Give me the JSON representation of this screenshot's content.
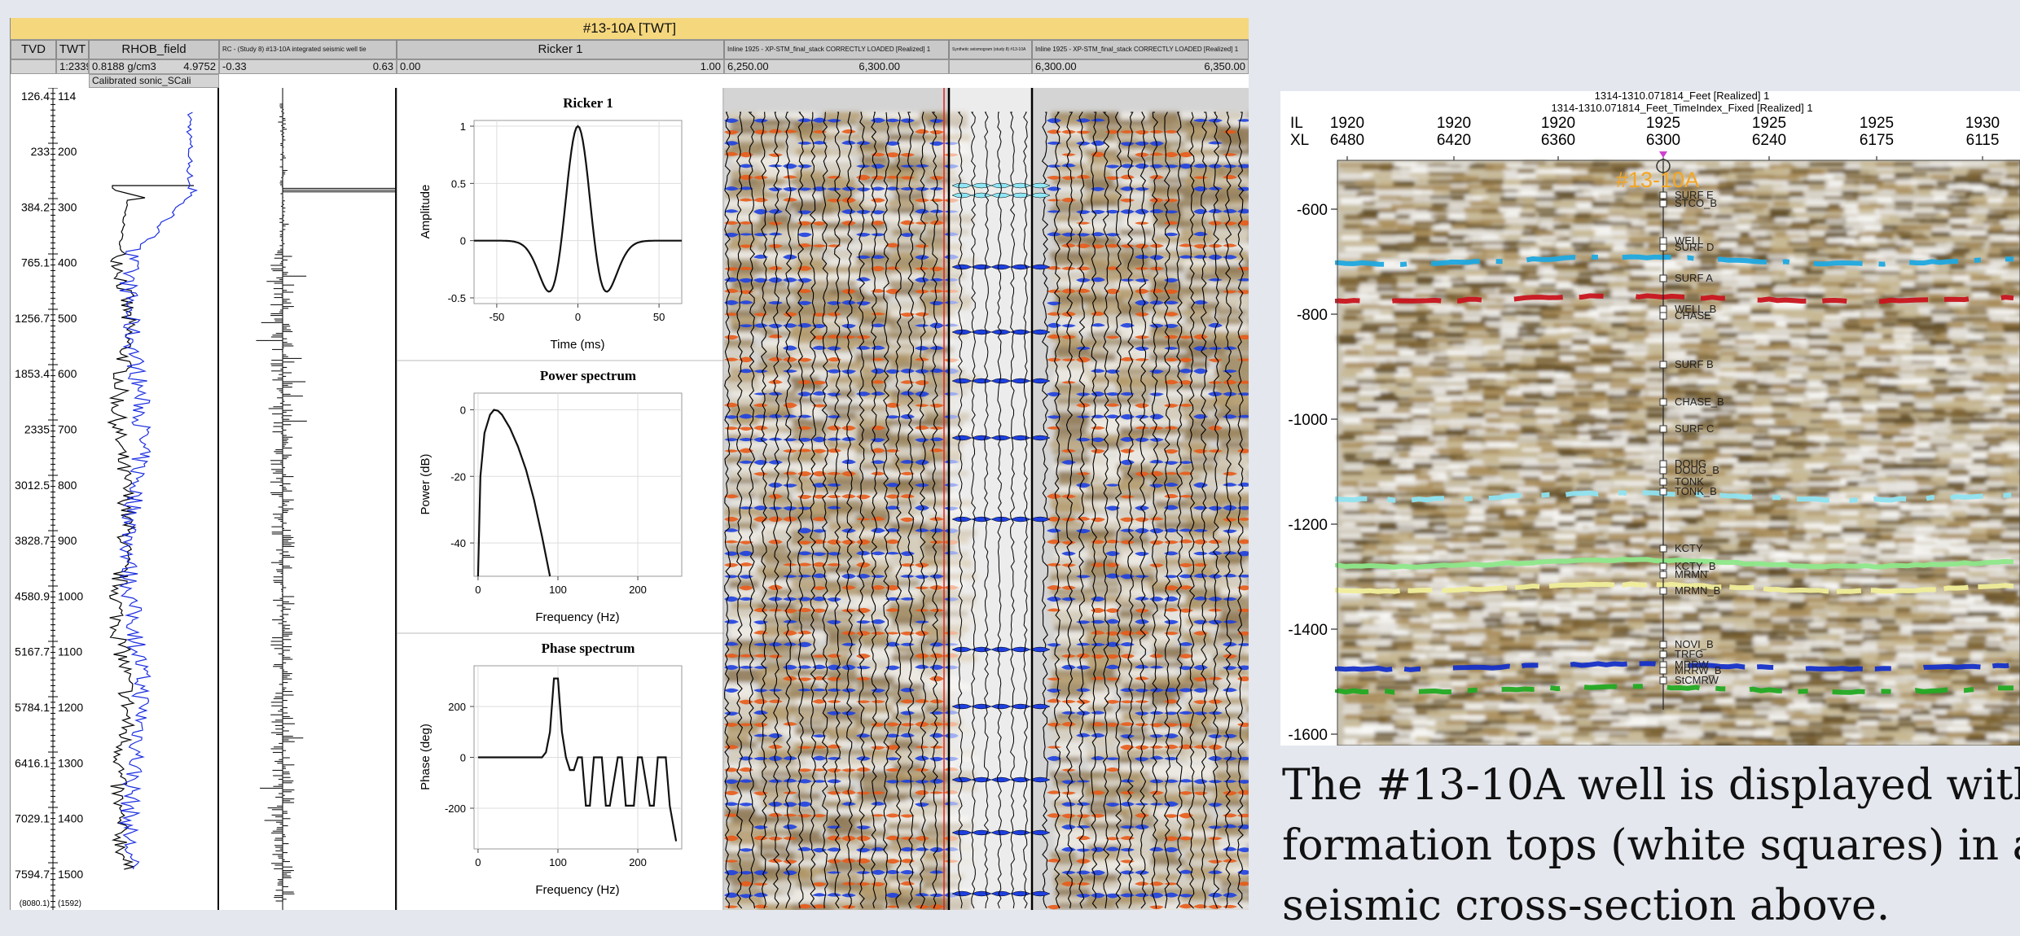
{
  "window_title": "#13-10A [TWT]",
  "tracks": {
    "tvd": "TVD",
    "twt": "TWT",
    "twt_scale": "1:2339",
    "rhob": "RHOB_field",
    "rhob_min": "0.8188 g/cm3",
    "rhob_max": "4.9752",
    "sonic": "Calibrated sonic_SCali",
    "rc": "RC - (Study 8) #13-10A integrated seismic well tie",
    "rc_min": "-0.33",
    "rc_max": "0.63",
    "ricker": "Ricker 1",
    "ricker_min": "0.00",
    "ricker_max": "1.00",
    "seis1": "Inline 1925 - XP-STM_final_stack CORRECTLY LOADED [Realized] 1",
    "seis1_min": "6,250.00",
    "seis1_max": "6,300.00",
    "synth": "Synthetic seismogram (study 8) #13-10A",
    "seis2": "Inline 1925 - XP-STM_final_stack CORRECTLY LOADED [Realized] 1",
    "seis2_min": "6,300.00",
    "seis2_max": "6,350.00"
  },
  "depth_rows": [
    {
      "tvd": "126.4",
      "twt": "114"
    },
    {
      "tvd": "233",
      "twt": "200"
    },
    {
      "tvd": "384.2",
      "twt": "300"
    },
    {
      "tvd": "765.1",
      "twt": "400"
    },
    {
      "tvd": "1256.7",
      "twt": "500"
    },
    {
      "tvd": "1853.4",
      "twt": "600"
    },
    {
      "tvd": "2335",
      "twt": "700"
    },
    {
      "tvd": "3012.5",
      "twt": "800"
    },
    {
      "tvd": "3828.7",
      "twt": "900"
    },
    {
      "tvd": "4580.9",
      "twt": "1000"
    },
    {
      "tvd": "5167.7",
      "twt": "1100"
    },
    {
      "tvd": "5784.1",
      "twt": "1200"
    },
    {
      "tvd": "6416.1",
      "twt": "1300"
    },
    {
      "tvd": "7029.1",
      "twt": "1400"
    },
    {
      "tvd": "7594.7",
      "twt": "1500"
    },
    {
      "tvd": "(8080.1)",
      "twt": "(1592)"
    }
  ],
  "wavelet_panel": {
    "plot1": {
      "title": "Ricker 1",
      "xlabel": "Time (ms)",
      "ylabel": "Amplitude",
      "xticks": [
        "-50",
        "0",
        "50"
      ],
      "yticks": [
        "1",
        "0.5",
        "0",
        "-0.5"
      ]
    },
    "plot2": {
      "title": "Power spectrum",
      "xlabel": "Frequency (Hz)",
      "ylabel": "Power (dB)",
      "xticks": [
        "0",
        "100",
        "200"
      ],
      "yticks": [
        "0",
        "-20",
        "-40"
      ]
    },
    "plot3": {
      "title": "Phase spectrum",
      "xlabel": "Frequency (Hz)",
      "ylabel": "Phase (deg)",
      "xticks": [
        "0",
        "100",
        "200"
      ],
      "yticks": [
        "200",
        "0",
        "-200"
      ]
    }
  },
  "chart_data": [
    {
      "type": "line",
      "title": "Ricker 1",
      "xlabel": "Time (ms)",
      "ylabel": "Amplitude",
      "xlim": [
        -64,
        64
      ],
      "ylim": [
        -0.55,
        1.05
      ],
      "x": [
        -64,
        -56,
        -48,
        -40,
        -32,
        -28,
        -24,
        -20,
        -16,
        -12,
        -8,
        -4,
        0,
        4,
        8,
        12,
        16,
        20,
        24,
        28,
        32,
        40,
        48,
        56,
        64
      ],
      "y": [
        0,
        0,
        0,
        -0.01,
        -0.1,
        -0.22,
        -0.38,
        -0.45,
        -0.36,
        -0.02,
        0.45,
        0.86,
        1.0,
        0.86,
        0.45,
        -0.02,
        -0.36,
        -0.45,
        -0.38,
        -0.22,
        -0.1,
        -0.01,
        0,
        0,
        0
      ]
    },
    {
      "type": "line",
      "title": "Power spectrum",
      "xlabel": "Frequency (Hz)",
      "ylabel": "Power (dB)",
      "xlim": [
        -5,
        255
      ],
      "ylim": [
        -50,
        5
      ],
      "x": [
        0,
        3,
        8,
        15,
        20,
        25,
        30,
        40,
        50,
        60,
        70,
        80,
        90
      ],
      "y": [
        -50,
        -20,
        -7,
        -1.5,
        0,
        -0.3,
        -1.5,
        -5.5,
        -11,
        -18,
        -27,
        -38,
        -50
      ]
    },
    {
      "type": "line",
      "title": "Phase spectrum",
      "xlabel": "Frequency (Hz)",
      "ylabel": "Phase (deg)",
      "xlim": [
        -5,
        255
      ],
      "ylim": [
        -360,
        360
      ],
      "x": [
        0,
        80,
        85,
        90,
        95,
        100,
        105,
        110,
        115,
        120,
        125,
        130,
        135,
        140,
        145,
        155,
        160,
        165,
        175,
        180,
        185,
        195,
        200,
        205,
        215,
        220,
        225,
        235,
        240,
        248
      ],
      "y": [
        0,
        0,
        20,
        100,
        310,
        310,
        100,
        0,
        -50,
        -50,
        0,
        0,
        -190,
        -190,
        0,
        0,
        -190,
        -190,
        0,
        0,
        -190,
        -190,
        0,
        0,
        -190,
        -190,
        0,
        0,
        -190,
        -330
      ]
    }
  ],
  "cross_section": {
    "title_line1": "1314-1310.071814_Feet [Realized] 1",
    "title_line2": "1314-1310.071814_Feet_TimeIndex_Fixed [Realized] 1",
    "il_label": "IL",
    "xl_label": "XL",
    "columns": [
      {
        "il": "1920",
        "xl": "6480"
      },
      {
        "il": "1920",
        "xl": "6420"
      },
      {
        "il": "1920",
        "xl": "6360"
      },
      {
        "il": "1925",
        "xl": "6300"
      },
      {
        "il": "1925",
        "xl": "6240"
      },
      {
        "il": "1925",
        "xl": "6175"
      },
      {
        "il": "1930",
        "xl": "6115"
      }
    ],
    "y_ticks": [
      "-600",
      "-800",
      "-1000",
      "-1200",
      "-1400",
      "-1600"
    ],
    "well_name": "#13-10A",
    "tops": [
      "SURF E",
      "STCO_B",
      "WELL",
      "SURF D",
      "SURF A",
      "WELL_B",
      "CHASE",
      "SURF B",
      "CHASE_B",
      "SURF C",
      "DOUG",
      "DOUG_B",
      "TONK",
      "TONK_B",
      "KCTY",
      "KCTY_B",
      "MRMN",
      "MRMN_B",
      "NOVI_B",
      "TRFG",
      "MRRW",
      "MRRW_B",
      "StCMRW"
    ],
    "colors": {
      "cyan": "#1fa9e0",
      "red": "#c8141e",
      "light_cyan": "#8fe3f0",
      "light_green": "#8ee88a",
      "yellow": "#f0ee9a",
      "blue": "#1530c8",
      "green": "#22aa22",
      "well_label": "#f5a623"
    }
  },
  "caption": {
    "line1": "The #13-10A well is displayed with",
    "line2": "formation tops (white squares) in a",
    "line3": "seismic cross-section above."
  }
}
